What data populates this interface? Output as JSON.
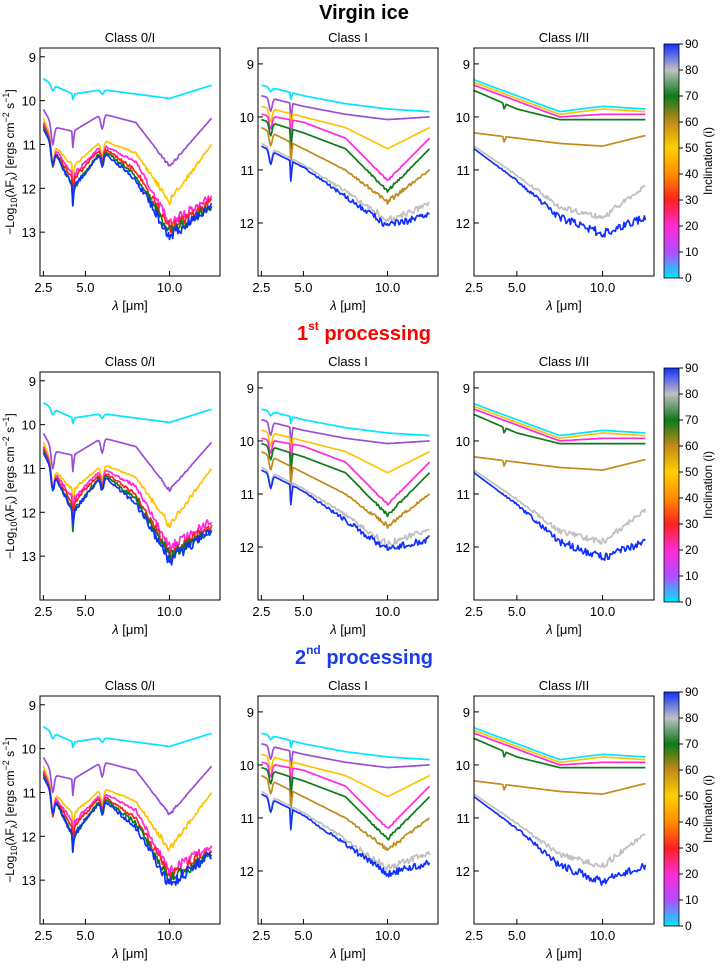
{
  "sections": [
    {
      "title": "Virgin ice",
      "title_main": "Virgin ice",
      "title_sup": "",
      "title_after": "",
      "color": "#000000"
    },
    {
      "title": "1st processing",
      "title_main": "1",
      "title_sup": "st",
      "title_after": " processing",
      "color": "#ff0000"
    },
    {
      "title": "2nd processing",
      "title_main": "2",
      "title_sup": "nd",
      "title_after": " processing",
      "color": "#1a3cf0"
    }
  ],
  "y_axis_label": "−Log₁₀(λF_λ) [ergs cm⁻² s⁻¹]",
  "y_axis_label_parts": {
    "a": "−Log",
    "a_sub": "10",
    "b": "(λF",
    "b_sub": "λ",
    "c": ") [ergs cm",
    "c_sup": "−2",
    "d": " s",
    "d_sup": "−1",
    "e": "]"
  },
  "x_axis_label": "λ [μm]",
  "x_axis_label_parts": {
    "sym": "λ",
    "unit": " [μm]"
  },
  "colorbar": {
    "label": "Inclination (i)",
    "ticks": [
      "90",
      "80",
      "70",
      "60",
      "50",
      "40",
      "30",
      "20",
      "10",
      "0"
    ],
    "range": [
      0,
      90
    ],
    "stops": [
      "#00e5ff",
      "#b04dff",
      "#ff2ad8",
      "#ff2020",
      "#ff8c00",
      "#ffd000",
      "#c28a18",
      "#0d7a1a",
      "#c0c0c0",
      "#1030ff"
    ]
  },
  "chart_data": [
    {
      "type": "line",
      "title": "Class 0/I",
      "xlabel": "λ [μm]",
      "ylabel": "−Log₁₀(λF_λ) [ergs cm⁻² s⁻¹]",
      "xlim": [
        2.3,
        13.0
      ],
      "ylim": [
        13.9,
        9.0
      ],
      "y_inverted": true,
      "xticks": [
        "2.5",
        "5.0",
        "10.0"
      ],
      "yticks": [
        "9",
        "10",
        "11",
        "12",
        "13"
      ],
      "series_note": "one curve per inclination; values are -log10 flux read at the listed wavelengths",
      "series": [
        {
          "inclination": 0,
          "color": "#00e5ff",
          "points": [
            [
              2.5,
              9.5
            ],
            [
              3.1,
              9.65
            ],
            [
              4.27,
              9.85
            ],
            [
              6.0,
              9.75
            ],
            [
              8.0,
              9.85
            ],
            [
              10.0,
              9.95
            ],
            [
              12.5,
              9.65
            ]
          ]
        },
        {
          "inclination": 10,
          "color": "#9b4dd8",
          "points": [
            [
              2.5,
              10.2
            ],
            [
              3.1,
              10.6
            ],
            [
              4.27,
              10.7
            ],
            [
              6.0,
              10.3
            ],
            [
              8.0,
              10.5
            ],
            [
              10.0,
              11.5
            ],
            [
              12.5,
              10.4
            ]
          ]
        },
        {
          "inclination": 30,
          "color": "#ffc400",
          "points": [
            [
              2.5,
              10.4
            ],
            [
              3.1,
              11.0
            ],
            [
              4.27,
              11.5
            ],
            [
              6.0,
              10.9
            ],
            [
              8.0,
              11.2
            ],
            [
              10.0,
              12.3
            ],
            [
              12.5,
              11.0
            ]
          ]
        },
        {
          "inclination": 50,
          "color": "#ff2ad8",
          "points": [
            [
              2.5,
              10.5
            ],
            [
              3.1,
              11.05
            ],
            [
              4.27,
              11.7
            ],
            [
              6.0,
              11.0
            ],
            [
              8.0,
              11.4
            ],
            [
              10.0,
              12.8
            ],
            [
              12.5,
              12.2
            ]
          ]
        },
        {
          "inclination": 60,
          "color": "#ff2020",
          "points": [
            [
              2.5,
              10.55
            ],
            [
              3.1,
              11.1
            ],
            [
              4.27,
              11.8
            ],
            [
              6.0,
              11.05
            ],
            [
              8.0,
              11.6
            ],
            [
              10.0,
              12.9
            ],
            [
              12.5,
              12.3
            ]
          ]
        },
        {
          "inclination": 70,
          "color": "#0d7a1a",
          "points": [
            [
              2.5,
              10.6
            ],
            [
              3.1,
              11.1
            ],
            [
              4.27,
              12.0
            ],
            [
              6.0,
              11.1
            ],
            [
              8.0,
              11.7
            ],
            [
              10.0,
              13.0
            ],
            [
              12.5,
              12.4
            ]
          ]
        },
        {
          "inclination": 90,
          "color": "#1030ff",
          "points": [
            [
              2.5,
              10.65
            ],
            [
              3.1,
              11.1
            ],
            [
              4.27,
              12.0
            ],
            [
              6.0,
              11.15
            ],
            [
              8.0,
              11.8
            ],
            [
              10.0,
              13.1
            ],
            [
              12.5,
              12.4
            ]
          ]
        }
      ]
    },
    {
      "type": "line",
      "title": "Class I",
      "xlabel": "λ [μm]",
      "ylabel": "",
      "xlim": [
        2.3,
        13.0
      ],
      "ylim": [
        13.0,
        9.0
      ],
      "y_inverted": true,
      "xticks": [
        "2.5",
        "5.0",
        "10.0"
      ],
      "yticks": [
        "9",
        "10",
        "11",
        "12"
      ],
      "series": [
        {
          "inclination": 0,
          "color": "#00e5ff",
          "points": [
            [
              2.5,
              9.4
            ],
            [
              5.0,
              9.6
            ],
            [
              7.5,
              9.75
            ],
            [
              10.0,
              9.85
            ],
            [
              12.5,
              9.9
            ]
          ]
        },
        {
          "inclination": 10,
          "color": "#9b4dd8",
          "points": [
            [
              2.5,
              9.6
            ],
            [
              5.0,
              9.8
            ],
            [
              7.5,
              9.95
            ],
            [
              10.0,
              10.05
            ],
            [
              12.5,
              10.0
            ]
          ]
        },
        {
          "inclination": 30,
          "color": "#ffc400",
          "points": [
            [
              2.5,
              9.8
            ],
            [
              5.0,
              10.0
            ],
            [
              7.5,
              10.2
            ],
            [
              10.0,
              10.6
            ],
            [
              12.5,
              10.2
            ]
          ]
        },
        {
          "inclination": 50,
          "color": "#ff2ad8",
          "points": [
            [
              2.5,
              9.95
            ],
            [
              5.0,
              10.1
            ],
            [
              7.5,
              10.4
            ],
            [
              10.0,
              11.2
            ],
            [
              12.5,
              10.4
            ]
          ]
        },
        {
          "inclination": 60,
          "color": "#0d7a1a",
          "points": [
            [
              2.5,
              10.05
            ],
            [
              5.0,
              10.3
            ],
            [
              7.5,
              10.6
            ],
            [
              10.0,
              11.4
            ],
            [
              12.5,
              10.6
            ]
          ]
        },
        {
          "inclination": 70,
          "color": "#c28a18",
          "points": [
            [
              2.5,
              10.2
            ],
            [
              5.0,
              10.6
            ],
            [
              7.5,
              11.0
            ],
            [
              10.0,
              11.6
            ],
            [
              12.5,
              11.0
            ]
          ]
        },
        {
          "inclination": 80,
          "color": "#c0c0c0",
          "points": [
            [
              2.5,
              10.5
            ],
            [
              5.0,
              10.9
            ],
            [
              7.5,
              11.4
            ],
            [
              10.0,
              11.95
            ],
            [
              12.5,
              11.65
            ]
          ]
        },
        {
          "inclination": 90,
          "color": "#1030ff",
          "points": [
            [
              2.5,
              10.55
            ],
            [
              5.0,
              10.95
            ],
            [
              7.5,
              11.5
            ],
            [
              10.0,
              12.05
            ],
            [
              12.5,
              11.85
            ]
          ]
        }
      ]
    },
    {
      "type": "line",
      "title": "Class I/II",
      "xlabel": "λ [μm]",
      "ylabel": "",
      "xlim": [
        2.5,
        13.0
      ],
      "ylim": [
        13.0,
        9.0
      ],
      "y_inverted": true,
      "xticks": [
        "2.5",
        "5.0",
        "10.0"
      ],
      "yticks": [
        "9",
        "10",
        "11",
        "12"
      ],
      "series": [
        {
          "inclination": 0,
          "color": "#00e5ff",
          "points": [
            [
              2.5,
              9.3
            ],
            [
              5.0,
              9.6
            ],
            [
              7.5,
              9.9
            ],
            [
              10.0,
              9.8
            ],
            [
              12.5,
              9.85
            ]
          ]
        },
        {
          "inclination": 30,
          "color": "#ffc400",
          "points": [
            [
              2.5,
              9.35
            ],
            [
              5.0,
              9.65
            ],
            [
              7.5,
              9.95
            ],
            [
              10.0,
              9.85
            ],
            [
              12.5,
              9.9
            ]
          ]
        },
        {
          "inclination": 50,
          "color": "#ff2ad8",
          "points": [
            [
              2.5,
              9.4
            ],
            [
              5.0,
              9.7
            ],
            [
              7.5,
              10.0
            ],
            [
              10.0,
              9.95
            ],
            [
              12.5,
              9.95
            ]
          ]
        },
        {
          "inclination": 60,
          "color": "#0d7a1a",
          "points": [
            [
              2.5,
              9.5
            ],
            [
              5.0,
              9.85
            ],
            [
              7.5,
              10.05
            ],
            [
              10.0,
              10.05
            ],
            [
              12.5,
              10.05
            ]
          ]
        },
        {
          "inclination": 70,
          "color": "#c28a18",
          "points": [
            [
              2.5,
              10.3
            ],
            [
              5.0,
              10.4
            ],
            [
              7.5,
              10.5
            ],
            [
              10.0,
              10.55
            ],
            [
              12.5,
              10.35
            ]
          ]
        },
        {
          "inclination": 80,
          "color": "#c0c0c0",
          "points": [
            [
              2.5,
              10.55
            ],
            [
              5.0,
              11.1
            ],
            [
              7.5,
              11.7
            ],
            [
              10.0,
              11.9
            ],
            [
              12.5,
              11.3
            ]
          ]
        },
        {
          "inclination": 90,
          "color": "#1030ff",
          "points": [
            [
              2.5,
              10.6
            ],
            [
              5.0,
              11.2
            ],
            [
              7.5,
              11.9
            ],
            [
              10.0,
              12.2
            ],
            [
              12.5,
              11.9
            ]
          ]
        }
      ]
    }
  ]
}
